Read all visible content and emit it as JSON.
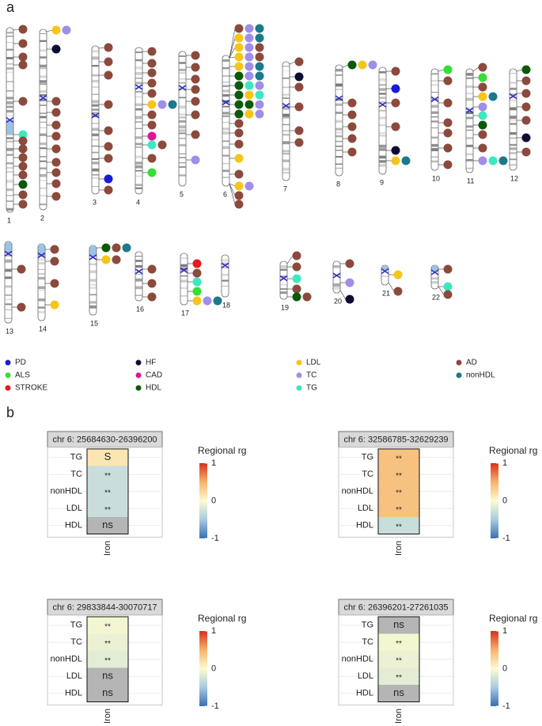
{
  "panel_a": {
    "label": "a",
    "chromosomes": [
      "1",
      "2",
      "3",
      "4",
      "5",
      "6",
      "7",
      "8",
      "9",
      "10",
      "11",
      "12",
      "13",
      "14",
      "15",
      "16",
      "17",
      "18",
      "19",
      "20",
      "21",
      "22"
    ],
    "legend": [
      {
        "name": "PD",
        "color": "#1a1adb"
      },
      {
        "name": "ALS",
        "color": "#33e033"
      },
      {
        "name": "STROKE",
        "color": "#e41a1c"
      },
      {
        "name": "HF",
        "color": "#0d0d33"
      },
      {
        "name": "CAD",
        "color": "#e0149a"
      },
      {
        "name": "HDL",
        "color": "#0a5a0a"
      },
      {
        "name": "LDL",
        "color": "#f5c518"
      },
      {
        "name": "TC",
        "color": "#a08ee8"
      },
      {
        "name": "TG",
        "color": "#3ce8c0"
      },
      {
        "name": "AD",
        "color": "#8b4a3c"
      },
      {
        "name": "nonHDL",
        "color": "#1a7a8a"
      }
    ]
  },
  "panel_b": {
    "label": "b",
    "panels": [
      {
        "title": "chr 6: 25684630-26396200",
        "rows": [
          "TG",
          "TC",
          "nonHDL",
          "LDL",
          "HDL"
        ],
        "values": [
          0.15,
          -0.3,
          -0.3,
          -0.3,
          null
        ],
        "value_labels": [
          "S",
          "**",
          "**",
          "**",
          "ns"
        ],
        "x_label": "Iron",
        "legend_title": "Regional rg",
        "clim": [
          -1,
          1
        ],
        "cticks": [
          -1,
          0,
          1
        ]
      },
      {
        "title": "chr 6: 32586785-32629239",
        "rows": [
          "TG",
          "TC",
          "nonHDL",
          "LDL",
          "HDL"
        ],
        "values": [
          0.4,
          0.4,
          0.4,
          0.4,
          -0.3
        ],
        "value_labels": [
          "**",
          "**",
          "**",
          "**",
          "**"
        ],
        "x_label": "Iron",
        "legend_title": "Regional rg",
        "clim": [
          -1,
          1
        ],
        "cticks": [
          -1,
          0,
          1
        ]
      },
      {
        "title": "chr 6: 29833844-30070717",
        "rows": [
          "TG",
          "TC",
          "nonHDL",
          "LDL",
          "HDL"
        ],
        "values": [
          -0.05,
          -0.1,
          -0.15,
          null,
          null
        ],
        "value_labels": [
          "**",
          "**",
          "**",
          "ns",
          "ns"
        ],
        "x_label": "Iron",
        "legend_title": "Regional rg",
        "clim": [
          -1,
          1
        ],
        "cticks": [
          -1,
          0,
          1
        ]
      },
      {
        "title": "chr 6: 26396201-27261035",
        "rows": [
          "TG",
          "TC",
          "nonHDL",
          "LDL",
          "HDL"
        ],
        "values": [
          null,
          -0.05,
          -0.1,
          -0.15,
          null
        ],
        "value_labels": [
          "ns",
          "**",
          "**",
          "**",
          "ns"
        ],
        "x_label": "Iron",
        "legend_title": "Regional rg",
        "clim": [
          -1,
          1
        ],
        "cticks": [
          -1,
          0,
          1
        ]
      }
    ]
  }
}
